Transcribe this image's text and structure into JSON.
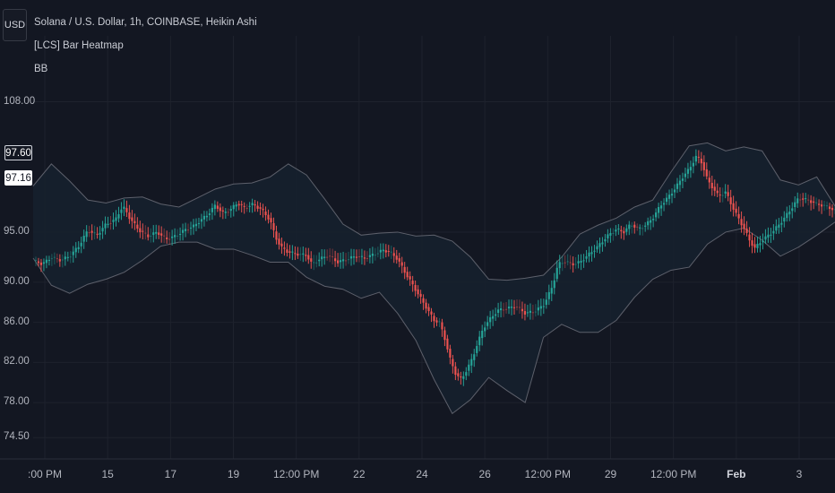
{
  "legend": {
    "symbol": "Solana / U.S. Dollar, 1h, COINBASE, Heikin Ashi",
    "indicator1": "[LCS] Bar Heatmap",
    "indicator2": "BB"
  },
  "currency_button": "USD",
  "price_tags": {
    "high": "97.60",
    "last": "97.16"
  },
  "colors": {
    "background": "#131722",
    "bull": "#26a69a",
    "bear": "#ef5350",
    "band_line": "#5d606b",
    "band_fill": "#16202e",
    "grid": "#1e222d"
  },
  "chart_data": {
    "type": "line",
    "title": "Solana / U.S. Dollar, 1h, COINBASE, Heikin Ashi",
    "y_ticks": [
      "108.00",
      "95.00",
      "90.00",
      "86.00",
      "82.00",
      "78.00",
      "74.50"
    ],
    "y_tick_values": [
      108,
      95,
      90,
      86,
      82,
      78,
      74.5
    ],
    "x_ticks": [
      ":00 PM",
      "15",
      "17",
      "19",
      "12:00 PM",
      "22",
      "24",
      "26",
      "12:00 PM",
      "29",
      "12:00 PM",
      "Feb",
      "3"
    ],
    "series": [
      {
        "name": "Heikin Ashi close",
        "points": [
          [
            0.0,
            92.2
          ],
          [
            0.5,
            91.8
          ],
          [
            1.0,
            92.5
          ],
          [
            1.5,
            92.2
          ],
          [
            2.0,
            92.6
          ],
          [
            2.5,
            93.6
          ],
          [
            3.0,
            95.2
          ],
          [
            3.5,
            94.7
          ],
          [
            4.0,
            95.8
          ],
          [
            4.5,
            96.2
          ],
          [
            4.8,
            97.3
          ],
          [
            5.0,
            97.4
          ],
          [
            5.3,
            96.4
          ],
          [
            5.8,
            95.2
          ],
          [
            6.3,
            94.6
          ],
          [
            6.8,
            95.0
          ],
          [
            7.3,
            94.3
          ],
          [
            7.8,
            94.6
          ],
          [
            8.3,
            95.2
          ],
          [
            8.8,
            95.6
          ],
          [
            9.2,
            96.2
          ],
          [
            9.6,
            96.8
          ],
          [
            10.0,
            97.7
          ],
          [
            10.4,
            96.9
          ],
          [
            10.8,
            97.2
          ],
          [
            11.2,
            97.9
          ],
          [
            11.6,
            97.4
          ],
          [
            12.0,
            97.8
          ],
          [
            12.5,
            97.3
          ],
          [
            13.0,
            96.2
          ],
          [
            13.3,
            94.5
          ],
          [
            13.6,
            93.5
          ],
          [
            14.0,
            93.0
          ],
          [
            14.5,
            92.8
          ],
          [
            15.0,
            92.7
          ],
          [
            15.3,
            91.8
          ],
          [
            15.7,
            92.3
          ],
          [
            16.2,
            92.7
          ],
          [
            16.7,
            92.0
          ],
          [
            17.2,
            92.3
          ],
          [
            17.7,
            92.6
          ],
          [
            18.2,
            92.4
          ],
          [
            18.7,
            92.8
          ],
          [
            19.2,
            93.2
          ],
          [
            19.6,
            93.0
          ],
          [
            20.0,
            92.3
          ],
          [
            20.4,
            91.0
          ],
          [
            20.8,
            89.8
          ],
          [
            21.2,
            88.6
          ],
          [
            21.6,
            87.4
          ],
          [
            22.0,
            86.2
          ],
          [
            22.3,
            86.0
          ],
          [
            22.6,
            84.3
          ],
          [
            22.9,
            82.2
          ],
          [
            23.2,
            80.8
          ],
          [
            23.5,
            80.3
          ],
          [
            23.8,
            81.3
          ],
          [
            24.1,
            82.4
          ],
          [
            24.4,
            84.0
          ],
          [
            24.7,
            85.4
          ],
          [
            25.0,
            86.2
          ],
          [
            25.5,
            87.2
          ],
          [
            26.0,
            87.4
          ],
          [
            26.5,
            87.6
          ],
          [
            27.0,
            86.9
          ],
          [
            27.5,
            87.1
          ],
          [
            28.0,
            87.7
          ],
          [
            28.5,
            89.6
          ],
          [
            28.8,
            91.8
          ],
          [
            29.2,
            92.1
          ],
          [
            29.6,
            91.8
          ],
          [
            30.0,
            92.0
          ],
          [
            30.5,
            92.8
          ],
          [
            31.0,
            93.6
          ],
          [
            31.5,
            94.6
          ],
          [
            32.0,
            95.3
          ],
          [
            32.4,
            95.0
          ],
          [
            32.8,
            95.8
          ],
          [
            33.2,
            95.3
          ],
          [
            33.6,
            95.7
          ],
          [
            34.0,
            96.4
          ],
          [
            34.4,
            97.6
          ],
          [
            34.8,
            98.4
          ],
          [
            35.2,
            99.3
          ],
          [
            35.6,
            100.4
          ],
          [
            36.0,
            101.3
          ],
          [
            36.4,
            102.6
          ],
          [
            36.7,
            101.9
          ],
          [
            37.0,
            100.2
          ],
          [
            37.3,
            99.4
          ],
          [
            37.6,
            98.6
          ],
          [
            38.0,
            99.0
          ],
          [
            38.3,
            97.8
          ],
          [
            38.6,
            96.7
          ],
          [
            39.0,
            95.4
          ],
          [
            39.3,
            94.2
          ],
          [
            39.6,
            93.4
          ],
          [
            40.0,
            94.2
          ],
          [
            40.5,
            94.9
          ],
          [
            41.0,
            95.9
          ],
          [
            41.5,
            97.1
          ],
          [
            42.0,
            98.4
          ],
          [
            42.5,
            98.2
          ],
          [
            43.0,
            97.8
          ],
          [
            43.5,
            97.6
          ],
          [
            44.0,
            97.16
          ]
        ]
      },
      {
        "name": "BB upper",
        "points": [
          [
            0.0,
            99.6
          ],
          [
            1.0,
            101.8
          ],
          [
            2.0,
            100.1
          ],
          [
            3.0,
            98.2
          ],
          [
            4.0,
            97.9
          ],
          [
            5.0,
            98.4
          ],
          [
            6.0,
            98.5
          ],
          [
            7.0,
            97.8
          ],
          [
            8.0,
            97.5
          ],
          [
            9.0,
            98.4
          ],
          [
            10.0,
            99.3
          ],
          [
            11.0,
            99.8
          ],
          [
            12.0,
            99.9
          ],
          [
            13.0,
            100.5
          ],
          [
            14.0,
            101.8
          ],
          [
            15.0,
            100.7
          ],
          [
            16.0,
            98.3
          ],
          [
            17.0,
            95.8
          ],
          [
            18.0,
            94.7
          ],
          [
            19.0,
            94.9
          ],
          [
            20.0,
            95.0
          ],
          [
            21.0,
            94.6
          ],
          [
            22.0,
            94.7
          ],
          [
            23.0,
            94.1
          ],
          [
            24.0,
            92.5
          ],
          [
            25.0,
            90.3
          ],
          [
            26.0,
            90.2
          ],
          [
            27.0,
            90.4
          ],
          [
            28.0,
            90.7
          ],
          [
            29.0,
            92.5
          ],
          [
            30.0,
            94.8
          ],
          [
            31.0,
            95.7
          ],
          [
            32.0,
            96.4
          ],
          [
            33.0,
            97.5
          ],
          [
            34.0,
            98.2
          ],
          [
            35.0,
            101.0
          ],
          [
            36.0,
            103.6
          ],
          [
            37.0,
            103.9
          ],
          [
            38.0,
            103.1
          ],
          [
            39.0,
            103.5
          ],
          [
            40.0,
            103.1
          ],
          [
            41.0,
            100.2
          ],
          [
            42.0,
            99.7
          ],
          [
            43.0,
            100.5
          ],
          [
            44.0,
            97.6
          ]
        ]
      },
      {
        "name": "BB lower",
        "points": [
          [
            0.0,
            92.4
          ],
          [
            1.0,
            89.7
          ],
          [
            2.0,
            88.9
          ],
          [
            3.0,
            89.8
          ],
          [
            4.0,
            90.3
          ],
          [
            5.0,
            91.0
          ],
          [
            6.0,
            92.2
          ],
          [
            7.0,
            93.6
          ],
          [
            8.0,
            94.0
          ],
          [
            9.0,
            94.0
          ],
          [
            10.0,
            93.3
          ],
          [
            11.0,
            93.3
          ],
          [
            12.0,
            92.7
          ],
          [
            13.0,
            92.0
          ],
          [
            14.0,
            92.0
          ],
          [
            15.0,
            90.5
          ],
          [
            16.0,
            89.6
          ],
          [
            17.0,
            89.3
          ],
          [
            18.0,
            88.4
          ],
          [
            19.0,
            89.0
          ],
          [
            20.0,
            86.9
          ],
          [
            21.0,
            84.2
          ],
          [
            22.0,
            80.3
          ],
          [
            23.0,
            76.9
          ],
          [
            24.0,
            78.3
          ],
          [
            25.0,
            80.5
          ],
          [
            26.0,
            79.2
          ],
          [
            27.0,
            78.0
          ],
          [
            28.0,
            84.5
          ],
          [
            29.0,
            85.8
          ],
          [
            30.0,
            85.0
          ],
          [
            31.0,
            85.0
          ],
          [
            32.0,
            86.2
          ],
          [
            33.0,
            88.5
          ],
          [
            34.0,
            90.3
          ],
          [
            35.0,
            91.2
          ],
          [
            36.0,
            91.5
          ],
          [
            37.0,
            93.8
          ],
          [
            38.0,
            95.0
          ],
          [
            39.0,
            95.4
          ],
          [
            40.0,
            94.2
          ],
          [
            41.0,
            92.6
          ],
          [
            42.0,
            93.5
          ],
          [
            43.0,
            94.7
          ],
          [
            44.0,
            96.0
          ]
        ]
      }
    ],
    "xlabel": "",
    "ylabel": "",
    "ylim": [
      73,
      111
    ],
    "xlim": [
      0,
      44
    ],
    "grid": true
  }
}
